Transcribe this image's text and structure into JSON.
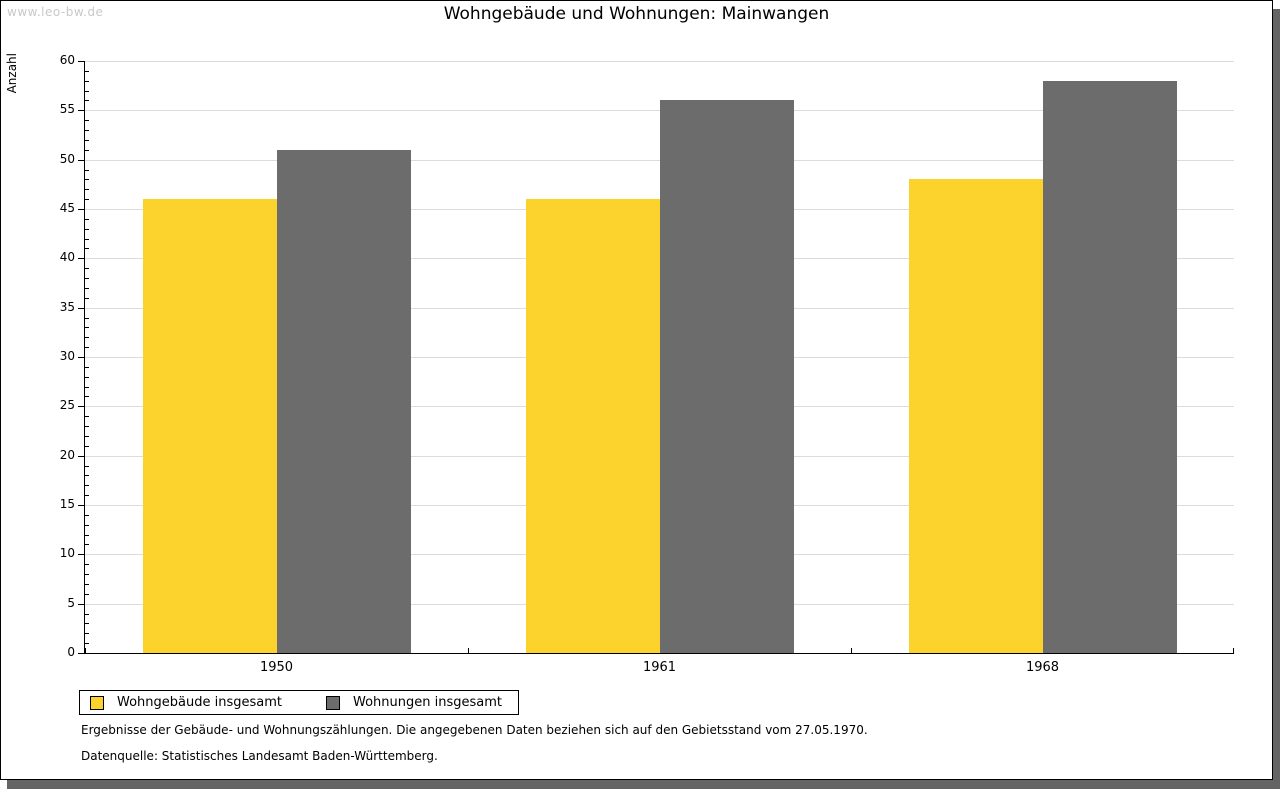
{
  "watermark": "www.leo-bw.de",
  "header": {
    "title": "Wohngebäude und Wohnungen: Mainwangen"
  },
  "chart_data": {
    "type": "bar",
    "title": "Wohngebäude und Wohnungen: Mainwangen",
    "categories": [
      "1950",
      "1961",
      "1968"
    ],
    "series": [
      {
        "name": "Wohngebäude insgesamt",
        "color": "#FCD32D",
        "values": [
          46,
          46,
          48
        ]
      },
      {
        "name": "Wohnungen insgesamt",
        "color": "#6C6C6C",
        "values": [
          51,
          56,
          58
        ]
      }
    ],
    "xlabel": "",
    "ylabel": "Anzahl",
    "ylim": [
      0,
      60
    ],
    "ytick_step": 5,
    "minor_tick_step": 1,
    "grid": true,
    "legend_position": "bottom-left"
  },
  "footnotes": {
    "line1": "Ergebnisse der Gebäude- und Wohnungszählungen. Die angegebenen Daten beziehen sich auf den Gebietsstand vom 27.05.1970.",
    "line2": "Datenquelle: Statistisches Landesamt Baden-Württemberg."
  },
  "colors": {
    "background": "#FFFFFF",
    "axis": "#000000",
    "grid": "#DCDCDC",
    "watermark": "#C9C9C9",
    "shadow": "#646464",
    "bar_yellow": "#FCD32D",
    "bar_gray": "#6C6C6C"
  }
}
